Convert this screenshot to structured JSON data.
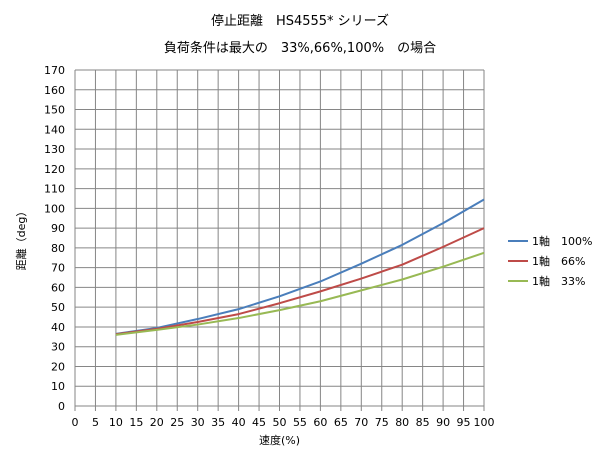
{
  "chart_data": {
    "type": "line",
    "title": "停止距離　HS4555* シリーズ",
    "subtitle": "負荷条件は最大の　33%,66%,100%　の場合",
    "xlabel": "速度(%)",
    "ylabel": "距離（deg）",
    "xlim": [
      0,
      100
    ],
    "ylim": [
      0,
      170
    ],
    "x_ticks": [
      0,
      5,
      10,
      15,
      20,
      25,
      30,
      35,
      40,
      45,
      50,
      55,
      60,
      65,
      70,
      75,
      80,
      85,
      90,
      95,
      100
    ],
    "y_ticks": [
      0,
      10,
      20,
      30,
      40,
      50,
      60,
      70,
      80,
      90,
      100,
      110,
      120,
      130,
      140,
      150,
      160,
      170
    ],
    "grid": true,
    "legend_position": "right",
    "x": [
      10,
      20,
      30,
      40,
      50,
      60,
      70,
      80,
      90,
      100
    ],
    "series": [
      {
        "name": "1軸　100%",
        "color": "#4a7ebb",
        "values": [
          36.5,
          39.5,
          44,
          49,
          55.5,
          63,
          72,
          81.5,
          92.5,
          104.5
        ]
      },
      {
        "name": "1軸　66%",
        "color": "#be4b48",
        "values": [
          36.3,
          39,
          42.5,
          46.5,
          52,
          58,
          64.5,
          71.5,
          80.5,
          90
        ]
      },
      {
        "name": "1軸　33%",
        "color": "#98b954",
        "values": [
          36,
          38.5,
          41.2,
          44.5,
          48.5,
          53,
          58.5,
          64,
          70.5,
          77.5
        ]
      }
    ]
  }
}
